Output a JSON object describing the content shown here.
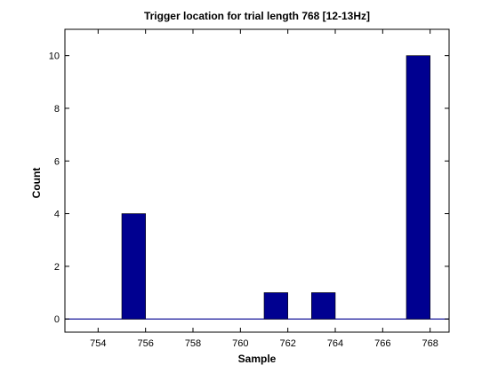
{
  "chart_data": {
    "type": "bar",
    "title": "Trigger location for trial length 768 [12-13Hz]",
    "xlabel": "Sample",
    "ylabel": "Count",
    "xlim": [
      752.6,
      768.8
    ],
    "ylim": [
      -0.5,
      11
    ],
    "xticks": [
      754,
      756,
      758,
      760,
      762,
      764,
      766,
      768
    ],
    "yticks": [
      0,
      2,
      4,
      6,
      8,
      10
    ],
    "bar_width": 1.0,
    "bar_color": "#000090",
    "baseline_color": "#000090",
    "baseline_start": 752.6,
    "grid": false,
    "legend": "none",
    "bars": [
      {
        "x": 755.5,
        "value": 4
      },
      {
        "x": 761.5,
        "value": 1
      },
      {
        "x": 763.5,
        "value": 1
      },
      {
        "x": 767.5,
        "value": 10
      }
    ]
  }
}
